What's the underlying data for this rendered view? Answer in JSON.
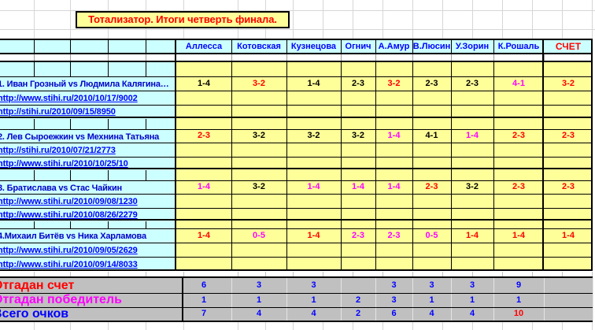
{
  "title": "Тотализатор. Итоги четверть финала.",
  "columns": [
    "Аллесса",
    "Котовская",
    "Кузнецова",
    "Огнич",
    "А.Амур",
    "В.Люсин",
    "У.Зорин",
    "К.Рошаль"
  ],
  "score_header": "СЧЕТ",
  "palette": {
    "red": "#FF0000",
    "magenta": "#FF00FF",
    "black": "#000000",
    "blue": "#0000FF",
    "cell_yellow": "#FFFF99",
    "header_blue": "#CCFFFF",
    "summary_gray": "#C0C0C0"
  },
  "matches": [
    {
      "name": "1. Иван Грозный  vs Людмила Калягина…",
      "links": [
        "http://www.stihi.ru/2010/10/17/9002",
        "http://stihi.ru/2010/09/15/8950"
      ],
      "predictions": [
        {
          "text": "1-4",
          "color": "black"
        },
        {
          "text": "3-2",
          "color": "red"
        },
        {
          "text": "1-4",
          "color": "black"
        },
        {
          "text": "2-3",
          "color": "black"
        },
        {
          "text": "3-2",
          "color": "red"
        },
        {
          "text": "2-3",
          "color": "black"
        },
        {
          "text": "2-3",
          "color": "black"
        },
        {
          "text": "4-1",
          "color": "magenta"
        }
      ],
      "score": {
        "text": "3-2",
        "color": "red"
      }
    },
    {
      "name": "2. Лев Сыроежкин vs  Мехнина Татьяна",
      "links": [
        "http://stihi.ru/2010/07/21/2773",
        "http://www.stihi.ru/2010/10/25/10"
      ],
      "predictions": [
        {
          "text": "2-3",
          "color": "red"
        },
        {
          "text": "3-2",
          "color": "black"
        },
        {
          "text": "3-2",
          "color": "black"
        },
        {
          "text": "3-2",
          "color": "black"
        },
        {
          "text": "1-4",
          "color": "magenta"
        },
        {
          "text": "4-1",
          "color": "black"
        },
        {
          "text": "1-4",
          "color": "magenta"
        },
        {
          "text": "2-3",
          "color": "red"
        }
      ],
      "score": {
        "text": "2-3",
        "color": "red"
      }
    },
    {
      "name": "3. Братислава   vs   Стас Чайкин",
      "links": [
        "http://www.stihi.ru/2010/09/08/1230",
        "http://www.stihi.ru/2010/08/26/2279"
      ],
      "predictions": [
        {
          "text": "1-4",
          "color": "magenta"
        },
        {
          "text": "3-2",
          "color": "black"
        },
        {
          "text": "1-4",
          "color": "magenta"
        },
        {
          "text": "1-4",
          "color": "magenta"
        },
        {
          "text": "1-4",
          "color": "magenta"
        },
        {
          "text": "2-3",
          "color": "red"
        },
        {
          "text": "3-2",
          "color": "black"
        },
        {
          "text": "2-3",
          "color": "red"
        }
      ],
      "score": {
        "text": "2-3",
        "color": "red"
      }
    },
    {
      "name": "4.Михаил Битёв   vs Ника Харламова",
      "links": [
        "http://www.stihi.ru/2010/09/05/2629",
        "http://www.stihi.ru/2010/09/14/8033"
      ],
      "predictions": [
        {
          "text": "1-4",
          "color": "red"
        },
        {
          "text": "0-5",
          "color": "magenta"
        },
        {
          "text": "1-4",
          "color": "red"
        },
        {
          "text": "2-3",
          "color": "magenta"
        },
        {
          "text": "2-3",
          "color": "magenta"
        },
        {
          "text": "0-5",
          "color": "magenta"
        },
        {
          "text": "1-4",
          "color": "red"
        },
        {
          "text": "1-4",
          "color": "red"
        }
      ],
      "score": {
        "text": "1-4",
        "color": "red"
      }
    }
  ],
  "summary": [
    {
      "label": "Отгадан счет",
      "label_color": "red",
      "values": [
        {
          "text": "6",
          "color": "blue"
        },
        {
          "text": "3",
          "color": "blue"
        },
        {
          "text": "3",
          "color": "blue"
        },
        {
          "text": "",
          "color": "blue"
        },
        {
          "text": "3",
          "color": "blue"
        },
        {
          "text": "3",
          "color": "blue"
        },
        {
          "text": "3",
          "color": "blue"
        },
        {
          "text": "9",
          "color": "blue"
        }
      ],
      "score": ""
    },
    {
      "label": "Отгадан победитель",
      "label_color": "magenta",
      "values": [
        {
          "text": "1",
          "color": "blue"
        },
        {
          "text": "1",
          "color": "blue"
        },
        {
          "text": "1",
          "color": "blue"
        },
        {
          "text": "2",
          "color": "blue"
        },
        {
          "text": "3",
          "color": "blue"
        },
        {
          "text": "1",
          "color": "blue"
        },
        {
          "text": "1",
          "color": "blue"
        },
        {
          "text": "1",
          "color": "blue"
        }
      ],
      "score": ""
    },
    {
      "label": "Всего очков",
      "label_color": "blue",
      "values": [
        {
          "text": "7",
          "color": "blue"
        },
        {
          "text": "4",
          "color": "blue"
        },
        {
          "text": "4",
          "color": "blue"
        },
        {
          "text": "2",
          "color": "blue"
        },
        {
          "text": "6",
          "color": "blue"
        },
        {
          "text": "4",
          "color": "blue"
        },
        {
          "text": "4",
          "color": "blue"
        },
        {
          "text": "10",
          "color": "red"
        }
      ],
      "score": ""
    }
  ]
}
